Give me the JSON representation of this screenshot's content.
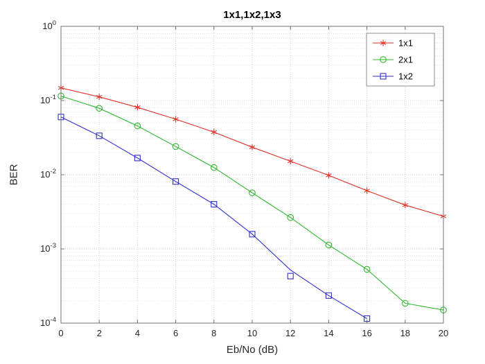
{
  "figure": {
    "background": "#ffffff"
  },
  "chart_data": {
    "type": "line",
    "title": "1x1,1x2,1x3",
    "xlabel": "Eb/No (dB)",
    "ylabel": "BER",
    "xlim": [
      0,
      20
    ],
    "xticks": [
      0,
      2,
      4,
      6,
      8,
      10,
      12,
      14,
      16,
      18,
      20
    ],
    "yscale": "log",
    "ylim": [
      0.0001,
      1
    ],
    "ytick_exponents": [
      0,
      -1,
      -2,
      -3,
      -4
    ],
    "grid": true,
    "minor_grid": true,
    "axis_color": "#707070",
    "grid_color": "#cfcfcf",
    "minor_grid_color": "#e0e0e0",
    "tick_label_color": "#262626",
    "legend": {
      "position": "northeast",
      "border_color": "#8c8c8c",
      "background": "#ffffff",
      "text_color": "#000000"
    },
    "series": [
      {
        "name": "1x1",
        "color": "#e03127",
        "marker": "asterisk",
        "x": [
          0,
          2,
          4,
          6,
          8,
          10,
          12,
          14,
          16,
          18,
          20
        ],
        "values": [
          0.148,
          0.112,
          0.081,
          0.056,
          0.0375,
          0.0235,
          0.0152,
          0.0098,
          0.0061,
          0.0039,
          0.00275
        ]
      },
      {
        "name": "2x1",
        "color": "#2eb82e",
        "marker": "circle",
        "x": [
          0,
          2,
          4,
          6,
          8,
          10,
          12,
          14,
          16,
          18,
          20
        ],
        "values": [
          0.115,
          0.0785,
          0.0455,
          0.024,
          0.0125,
          0.0057,
          0.00265,
          0.00113,
          0.00053,
          0.000185,
          0.00015
        ]
      },
      {
        "name": "1x2",
        "color": "#2f2fd3",
        "marker": "square",
        "x": [
          0,
          2,
          4,
          6,
          8,
          10,
          12,
          14,
          16
        ],
        "values": [
          0.06,
          0.0335,
          0.0168,
          0.0081,
          0.004,
          0.00158,
          0.00043,
          0.000235,
          0.000115
        ],
        "line_values": [
          0.06,
          0.0335,
          0.0168,
          0.0081,
          0.004,
          0.00158,
          0.00052,
          0.000235,
          0.000115
        ]
      }
    ]
  }
}
